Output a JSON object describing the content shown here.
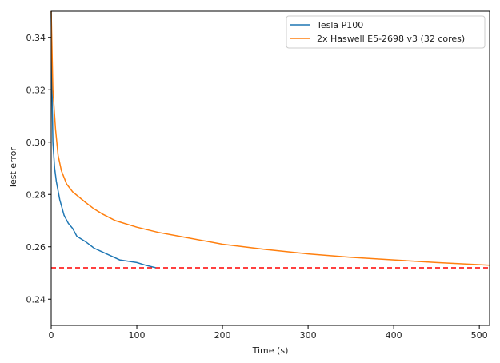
{
  "chart_data": {
    "type": "line",
    "title": "",
    "xlabel": "Time (s)",
    "ylabel": "Test error",
    "xlim": [
      0,
      512
    ],
    "ylim": [
      0.23,
      0.35
    ],
    "xticks": [
      0,
      100,
      200,
      300,
      400,
      500
    ],
    "yticks": [
      0.24,
      0.26,
      0.28,
      0.3,
      0.32,
      0.34
    ],
    "ytick_labels": [
      "0.24",
      "0.26",
      "0.28",
      "0.30",
      "0.32",
      "0.34"
    ],
    "grid": false,
    "legend": "top-right",
    "series": [
      {
        "name": "Tesla P100",
        "color": "#1f77b4",
        "x": [
          0,
          1,
          2,
          4,
          6,
          10,
          15,
          20,
          25,
          30,
          40,
          50,
          60,
          70,
          80,
          90,
          100,
          110,
          122
        ],
        "y": [
          0.35,
          0.32,
          0.3,
          0.29,
          0.285,
          0.278,
          0.272,
          0.269,
          0.267,
          0.264,
          0.262,
          0.2595,
          0.258,
          0.2565,
          0.255,
          0.2545,
          0.254,
          0.253,
          0.252
        ]
      },
      {
        "name": "2x Haswell E5-2698 v3 (32 cores)",
        "color": "#ff7f0e",
        "x": [
          0,
          2,
          5,
          8,
          12,
          18,
          25,
          40,
          50,
          60,
          75,
          100,
          125,
          150,
          200,
          250,
          300,
          350,
          400,
          450,
          512
        ],
        "y": [
          0.35,
          0.32,
          0.305,
          0.295,
          0.289,
          0.284,
          0.281,
          0.277,
          0.2745,
          0.2725,
          0.27,
          0.2675,
          0.2655,
          0.264,
          0.261,
          0.259,
          0.2573,
          0.256,
          0.255,
          0.254,
          0.253
        ]
      }
    ],
    "reference_line": {
      "y": 0.252,
      "color": "#ff0000",
      "style": "dashed"
    }
  }
}
